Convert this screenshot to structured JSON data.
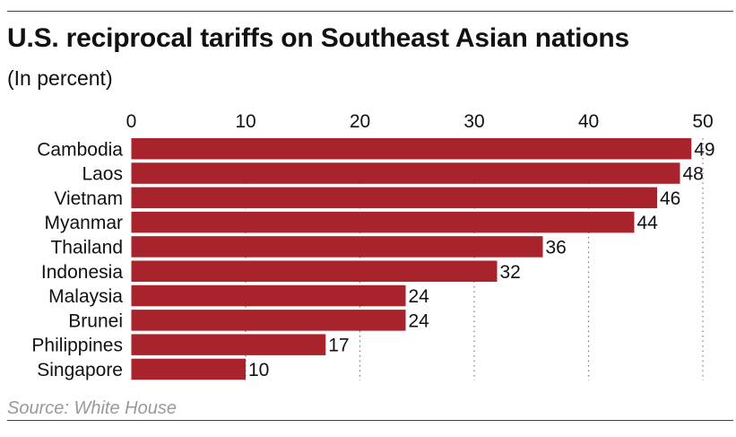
{
  "chart_data": {
    "type": "bar",
    "orientation": "horizontal",
    "title": "U.S. reciprocal tariffs on Southeast Asian nations",
    "subtitle": "(In percent)",
    "source": "Source: White House",
    "categories": [
      "Cambodia",
      "Laos",
      "Vietnam",
      "Myanmar",
      "Thailand",
      "Indonesia",
      "Malaysia",
      "Brunei",
      "Philippines",
      "Singapore"
    ],
    "values": [
      49,
      48,
      46,
      44,
      36,
      32,
      24,
      24,
      17,
      10
    ],
    "xlim": [
      0,
      50
    ],
    "xticks": [
      0,
      10,
      20,
      30,
      40,
      50
    ],
    "xlabel": "",
    "ylabel": "",
    "grid": true,
    "bar_color": "#a8232b"
  }
}
